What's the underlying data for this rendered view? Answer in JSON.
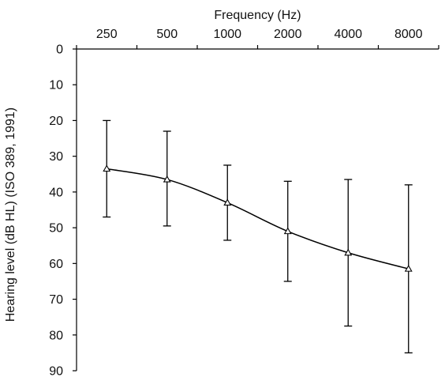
{
  "chart_data": {
    "type": "line",
    "xlabel": "Frequency (Hz)",
    "ylabel": "Hearing level (dB HL) (ISO 389, 1991)",
    "x_axis_position": "top",
    "y_axis_inverted": true,
    "grid": false,
    "categories": [
      "250",
      "500",
      "1000",
      "2000",
      "4000",
      "8000"
    ],
    "yticks": [
      "0",
      "10",
      "20",
      "30",
      "40",
      "50",
      "60",
      "70",
      "80",
      "90"
    ],
    "ylim": [
      0,
      90
    ],
    "series": [
      {
        "values": [
          33.5,
          36.5,
          43,
          51,
          57,
          61.5
        ],
        "error_low": [
          47,
          49.5,
          53.5,
          65,
          77.5,
          85
        ],
        "error_high": [
          20,
          23,
          32.5,
          37,
          36.5,
          38
        ],
        "marker": "open-triangle",
        "color": "#000000"
      }
    ]
  }
}
